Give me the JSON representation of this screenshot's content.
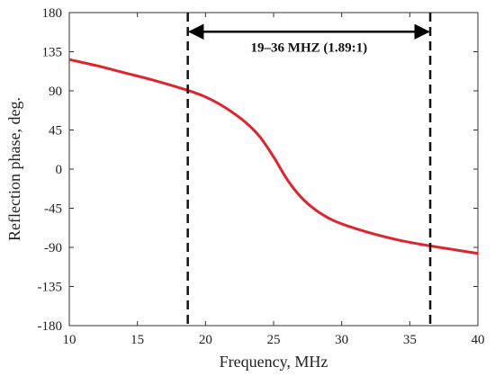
{
  "chart_data": {
    "type": "line",
    "xlabel": "Frequency, MHz",
    "ylabel": "Reflection phase, deg.",
    "xlim": [
      10,
      40
    ],
    "ylim": [
      -180,
      180
    ],
    "x_ticks": [
      10,
      15,
      20,
      25,
      30,
      35,
      40
    ],
    "y_ticks": [
      180,
      135,
      90,
      45,
      0,
      -45,
      -90,
      -135,
      -180
    ],
    "x_tick_labels": [
      "10",
      "15",
      "20",
      "25",
      "30",
      "35",
      "40"
    ],
    "y_tick_labels": [
      "180",
      "135",
      "90",
      "45",
      "0",
      "-45",
      "-90",
      "-135",
      "-180"
    ],
    "grid": false,
    "line_color": "#e0242b",
    "series": [
      {
        "x": [
          10,
          12,
          14,
          16,
          18,
          19,
          20,
          21,
          22,
          23,
          24,
          25,
          26,
          27,
          28,
          29,
          30,
          32,
          34,
          36,
          38,
          40
        ],
        "values": [
          126,
          119,
          111,
          103,
          94,
          89,
          83,
          75,
          65,
          53,
          37,
          14,
          -12,
          -32,
          -46,
          -56,
          -63,
          -73,
          -81,
          -87,
          -92,
          -97
        ]
      }
    ],
    "vlines": [
      18.7,
      36.5
    ],
    "annotation": {
      "text": "19–36 MHZ (1.89:1)",
      "arrow_from": 18.7,
      "arrow_to": 36.5,
      "arrow_y": 158
    }
  }
}
